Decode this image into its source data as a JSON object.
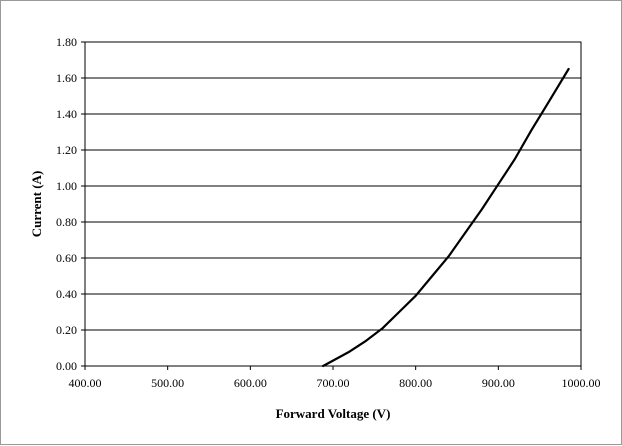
{
  "chart_data": {
    "type": "line",
    "title": "",
    "xlabel": "Forward Voltage (V)",
    "ylabel": "Current (A)",
    "xlim": [
      400,
      1000
    ],
    "ylim": [
      0,
      1.8
    ],
    "x_ticks": [
      "400.00",
      "500.00",
      "600.00",
      "700.00",
      "800.00",
      "900.00",
      "1000.00"
    ],
    "y_ticks": [
      "0.00",
      "0.20",
      "0.40",
      "0.60",
      "0.80",
      "1.00",
      "1.20",
      "1.40",
      "1.60",
      "1.80"
    ],
    "grid": "horizontal",
    "legend": "none",
    "series": [
      {
        "color": "#000000",
        "x": [
          688,
          700,
          720,
          740,
          760,
          780,
          800,
          820,
          840,
          860,
          880,
          900,
          920,
          940,
          960,
          985
        ],
        "y": [
          0.0,
          0.03,
          0.08,
          0.14,
          0.21,
          0.3,
          0.39,
          0.5,
          0.61,
          0.74,
          0.87,
          1.01,
          1.15,
          1.31,
          1.46,
          1.65
        ]
      }
    ]
  }
}
